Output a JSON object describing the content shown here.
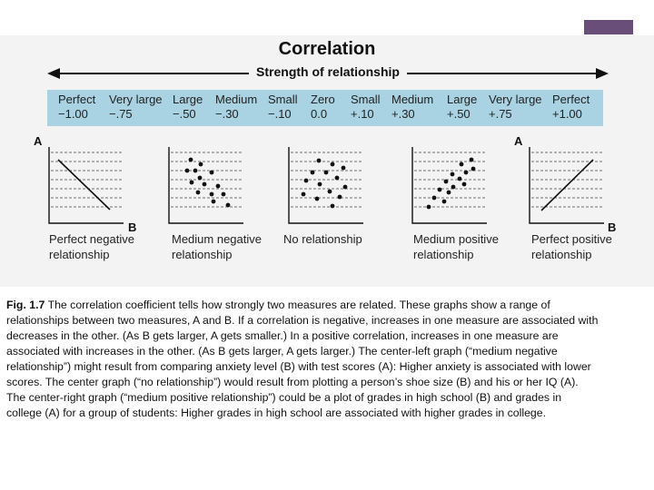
{
  "colors": {
    "band": "#a9d2e2",
    "figure_bg": "#f3f3f3",
    "accent_tab": "#6a4e7a"
  },
  "figure": {
    "title": "Correlation",
    "strength_label": "Strength of relationship",
    "scale": [
      {
        "name": "Perfect",
        "value": "−1.00"
      },
      {
        "name": "Very large",
        "value": "−.75"
      },
      {
        "name": "Large",
        "value": "−.50"
      },
      {
        "name": "Medium",
        "value": "−.30"
      },
      {
        "name": "Small",
        "value": "−.10"
      },
      {
        "name": "Zero",
        "value": "0.0"
      },
      {
        "name": "Small",
        "value": "+.10"
      },
      {
        "name": "Medium",
        "value": "+.30"
      },
      {
        "name": "Large",
        "value": "+.50"
      },
      {
        "name": "Very large",
        "value": "+.75"
      },
      {
        "name": "Perfect",
        "value": "+1.00"
      }
    ],
    "axis_a": "A",
    "axis_b": "B",
    "graphs": [
      {
        "label": "Perfect negative relationship"
      },
      {
        "label": "Medium negative relationship"
      },
      {
        "label": "No relationship"
      },
      {
        "label": "Medium positive relationship"
      },
      {
        "label": "Perfect positive relationship"
      }
    ]
  },
  "caption": {
    "label": "Fig. 1.7",
    "text": " The correlation coefficient tells how strongly two measures are related. These graphs show a range of relationships between two measures, A and B. If a correlation is negative, increases in one measure are associated with decreases in the other. (As B gets larger, A gets smaller.) In a positive correlation, increases in one measure are associated with increases in the other. (As B gets larger, A gets larger.) The center-left graph (“medium negative relationship”) might result from comparing anxiety level (B) with test scores (A): Higher anxiety is associated with lower scores. The center graph (“no relationship”) would result from plotting a person’s shoe size (B) and his or her IQ (A). The center-right graph (“medium positive relationship”) could be a plot of grades in high school (B) and grades in college (A) for a group of students: Higher grades in high school are associated with higher grades in college."
  }
}
